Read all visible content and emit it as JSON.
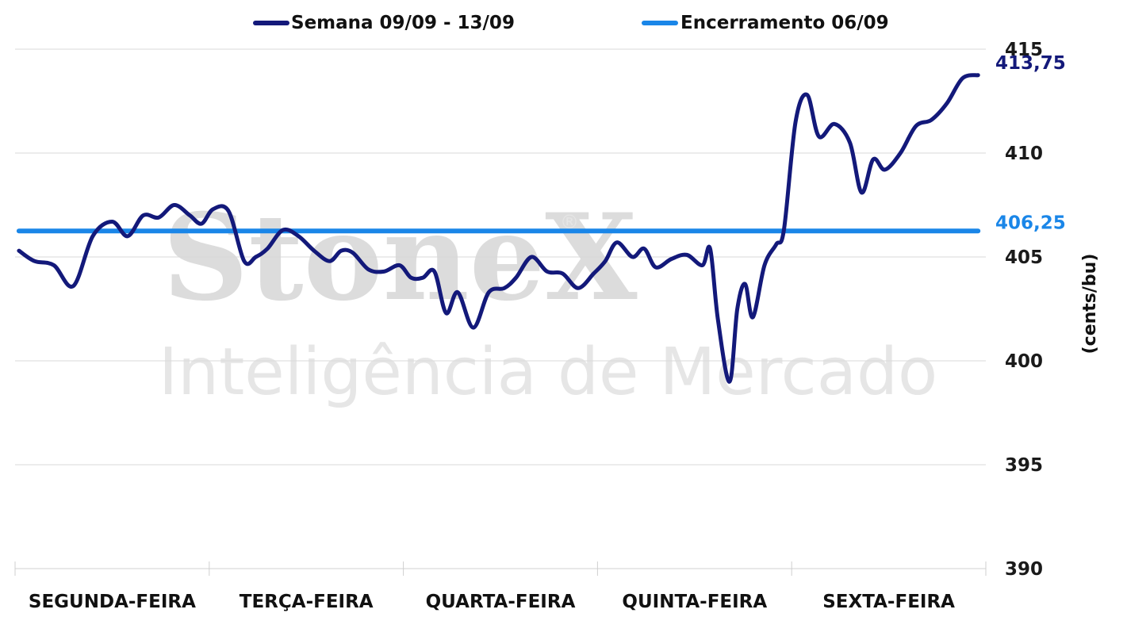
{
  "chart_data": {
    "type": "line",
    "categories": [
      "SEGUNDA-FEIRA",
      "TERÇA-FEIRA",
      "QUARTA-FEIRA",
      "QUINTA-FEIRA",
      "SEXTA-FEIRA"
    ],
    "ylabel": "(cents/bu)",
    "ylim": [
      390,
      415
    ],
    "yticks": [
      390,
      395,
      400,
      405,
      410,
      415
    ],
    "grid": true,
    "legend_position": "top",
    "series": [
      {
        "name": "Semana 09/09 - 13/09",
        "color": "#13197a",
        "end_label": "413,75",
        "x": [
          0.02,
          0.1,
          0.2,
          0.3,
          0.4,
          0.5,
          0.58,
          0.66,
          0.74,
          0.82,
          0.9,
          0.96,
          1.02,
          1.1,
          1.18,
          1.24,
          1.3,
          1.38,
          1.46,
          1.54,
          1.62,
          1.68,
          1.74,
          1.82,
          1.9,
          1.98,
          2.04,
          2.1,
          2.16,
          2.22,
          2.28,
          2.36,
          2.44,
          2.52,
          2.58,
          2.66,
          2.74,
          2.82,
          2.9,
          2.98,
          3.04,
          3.1,
          3.18,
          3.24,
          3.3,
          3.38,
          3.46,
          3.54,
          3.58,
          3.62,
          3.68,
          3.72,
          3.76,
          3.8,
          3.86,
          3.92,
          3.96,
          4.02,
          4.08,
          4.14,
          4.22,
          4.3,
          4.36,
          4.42,
          4.48,
          4.56,
          4.64,
          4.72,
          4.8,
          4.88,
          4.96
        ],
        "values": [
          405.3,
          404.8,
          404.6,
          403.6,
          406.0,
          406.7,
          406.0,
          407.0,
          406.9,
          407.5,
          407.0,
          406.6,
          407.3,
          407.2,
          404.8,
          405.0,
          405.4,
          406.3,
          406.0,
          405.3,
          404.8,
          405.3,
          405.2,
          404.4,
          404.3,
          404.6,
          404.0,
          404.0,
          404.3,
          402.3,
          403.3,
          401.6,
          403.3,
          403.5,
          404.0,
          405.0,
          404.3,
          404.2,
          403.5,
          404.2,
          404.8,
          405.7,
          405.0,
          405.4,
          404.5,
          404.9,
          405.1,
          404.6,
          405.4,
          402.0,
          399.0,
          402.5,
          403.7,
          402.1,
          404.6,
          405.6,
          406.3,
          411.5,
          412.8,
          410.8,
          411.4,
          410.5,
          408.1,
          409.7,
          409.2,
          410.0,
          411.3,
          411.6,
          412.4,
          413.6,
          413.75
        ]
      },
      {
        "name": "Encerramento 06/09",
        "color": "#1a86e8",
        "end_label": "406,25",
        "x": [
          0.02,
          4.96
        ],
        "values": [
          406.25,
          406.25
        ]
      }
    ],
    "watermark": {
      "brand": "StoneX",
      "mark": "®",
      "tagline": "Inteligência de Mercado"
    }
  }
}
